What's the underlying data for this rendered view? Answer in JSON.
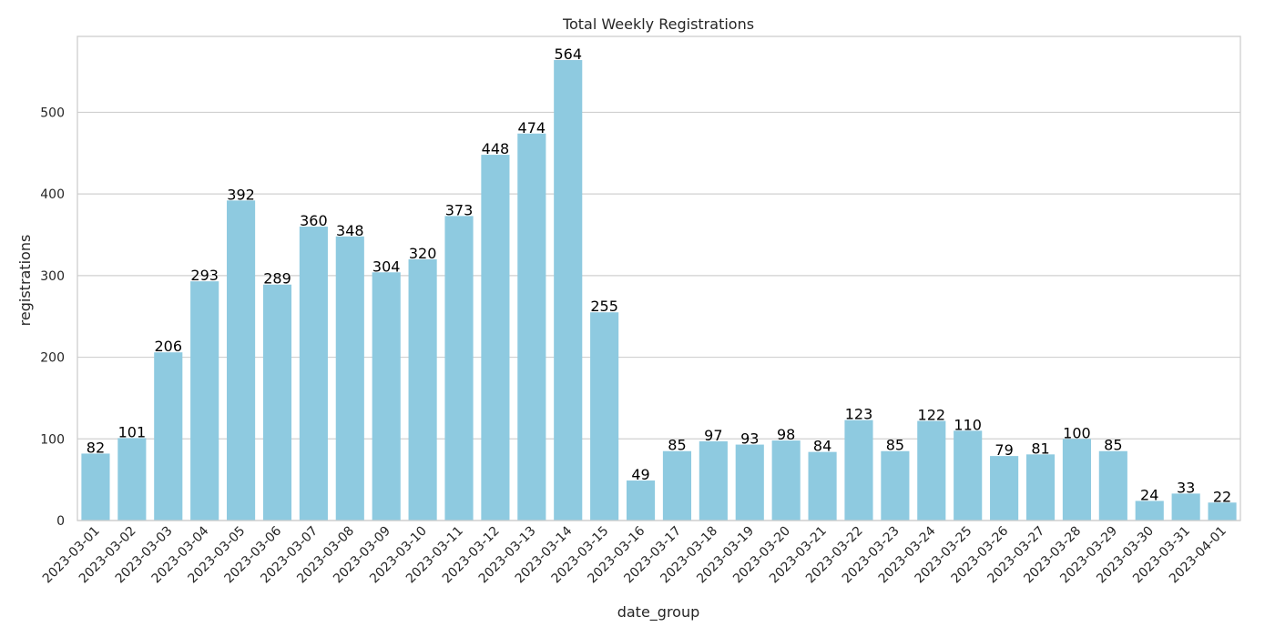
{
  "chart_data": {
    "type": "bar",
    "title": "Total Weekly Registrations",
    "xlabel": "date_group",
    "ylabel": "registrations",
    "categories": [
      "2023-03-01",
      "2023-03-02",
      "2023-03-03",
      "2023-03-04",
      "2023-03-05",
      "2023-03-06",
      "2023-03-07",
      "2023-03-08",
      "2023-03-09",
      "2023-03-10",
      "2023-03-11",
      "2023-03-12",
      "2023-03-13",
      "2023-03-14",
      "2023-03-15",
      "2023-03-16",
      "2023-03-17",
      "2023-03-18",
      "2023-03-19",
      "2023-03-20",
      "2023-03-21",
      "2023-03-22",
      "2023-03-23",
      "2023-03-24",
      "2023-03-25",
      "2023-03-26",
      "2023-03-27",
      "2023-03-28",
      "2023-03-29",
      "2023-03-30",
      "2023-03-31",
      "2023-04-01"
    ],
    "values": [
      82,
      101,
      206,
      293,
      392,
      289,
      360,
      348,
      304,
      320,
      373,
      448,
      474,
      564,
      255,
      49,
      85,
      97,
      93,
      98,
      84,
      123,
      85,
      122,
      110,
      79,
      81,
      100,
      85,
      24,
      33,
      22
    ],
    "ylim": [
      0,
      593
    ],
    "yticks": [
      0,
      100,
      200,
      300,
      400,
      500
    ],
    "grid": true,
    "colors": {
      "bar": "#8ecae0",
      "grid": "#d0d0d0",
      "frame": "#cccccc"
    }
  }
}
